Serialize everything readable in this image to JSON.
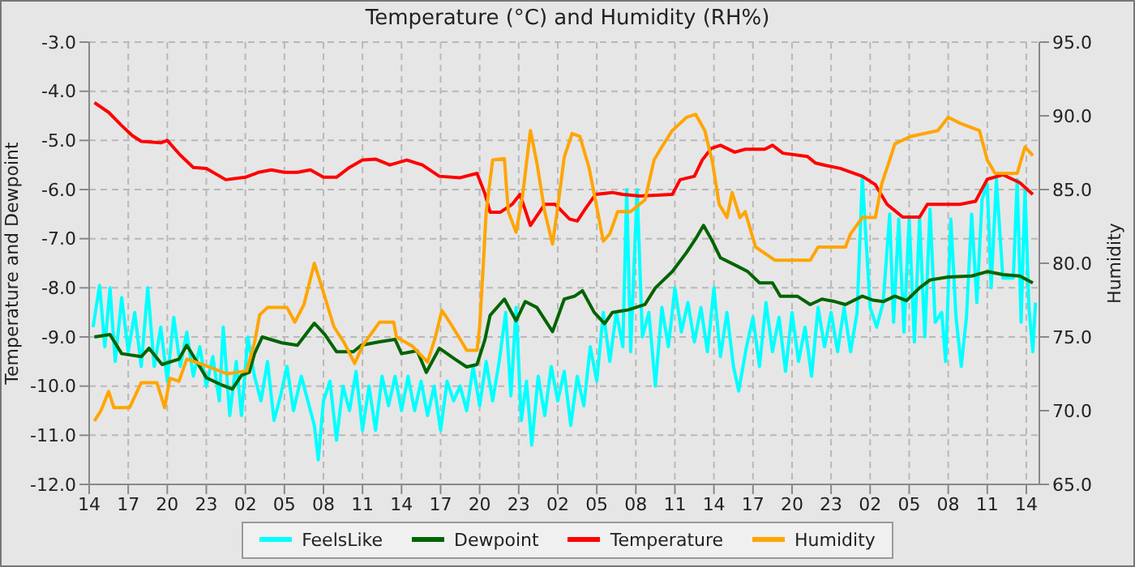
{
  "chart_data": {
    "type": "line",
    "title": "Temperature (°C) and Humidity (RH%)",
    "ylabel": "Temperature and Dewpoint",
    "y2label": "Humidity",
    "xlim": [
      "--01-01T14:00",
      "--01-04T15:00"
    ],
    "xticks": [
      {
        "value": "--01-01T14:00",
        "label": "14"
      },
      {
        "value": "--01-01T17:00",
        "label": "17"
      },
      {
        "value": "--01-01T20:00",
        "label": "20"
      },
      {
        "value": "--01-01T23:00",
        "label": "23"
      },
      {
        "value": "--01-02T02:00",
        "label": "02"
      },
      {
        "value": "--01-02T05:00",
        "label": "05"
      },
      {
        "value": "--01-02T08:00",
        "label": "08"
      },
      {
        "value": "--01-02T11:00",
        "label": "11"
      },
      {
        "value": "--01-02T14:00",
        "label": "14"
      },
      {
        "value": "--01-02T17:00",
        "label": "17"
      },
      {
        "value": "--01-02T20:00",
        "label": "20"
      },
      {
        "value": "--01-02T23:00",
        "label": "23"
      },
      {
        "value": "--01-03T02:00",
        "label": "02"
      },
      {
        "value": "--01-03T05:00",
        "label": "05"
      },
      {
        "value": "--01-03T08:00",
        "label": "08"
      },
      {
        "value": "--01-03T11:00",
        "label": "11"
      },
      {
        "value": "--01-03T14:00",
        "label": "14"
      },
      {
        "value": "--01-03T17:00",
        "label": "17"
      },
      {
        "value": "--01-03T20:00",
        "label": "20"
      },
      {
        "value": "--01-03T23:00",
        "label": "23"
      },
      {
        "value": "--01-04T02:00",
        "label": "02"
      },
      {
        "value": "--01-04T05:00",
        "label": "05"
      },
      {
        "value": "--01-04T08:00",
        "label": "08"
      },
      {
        "value": "--01-04T11:00",
        "label": "11"
      },
      {
        "value": "--01-04T14:00",
        "label": "14"
      }
    ],
    "ylim": [
      -12,
      -3
    ],
    "yticks": [
      {
        "value": -12,
        "label": "-12.0"
      },
      {
        "value": -11,
        "label": "-11.0"
      },
      {
        "value": -10,
        "label": "-10.0"
      },
      {
        "value": -9,
        "label": "-9.0"
      },
      {
        "value": -8,
        "label": "-8.0"
      },
      {
        "value": -7,
        "label": "-7.0"
      },
      {
        "value": -6,
        "label": "-6.0"
      },
      {
        "value": -5,
        "label": "-5.0"
      },
      {
        "value": -4,
        "label": "-4.0"
      },
      {
        "value": -3,
        "label": "-3.0"
      }
    ],
    "y2lim": [
      65,
      95
    ],
    "y2ticks": [
      {
        "value": 65,
        "label": "65.0"
      },
      {
        "value": 70,
        "label": "70.0"
      },
      {
        "value": 75,
        "label": "75.0"
      },
      {
        "value": 80,
        "label": "80.0"
      },
      {
        "value": 85,
        "label": "85.0"
      },
      {
        "value": 90,
        "label": "90.0"
      },
      {
        "value": 95,
        "label": "95.0"
      }
    ],
    "grid": true,
    "legend": "bottom",
    "line_style": "solid",
    "marker": "none",
    "series": [
      {
        "name": "FeelsLike",
        "color": "#00ffff",
        "x": [
          "--01-01T14:18",
          "--01-01T14:48",
          "--01-01T15:12",
          "--01-01T15:36",
          "--01-01T16:00",
          "--01-01T16:30",
          "--01-01T17:00",
          "--01-01T17:30",
          "--01-01T18:00",
          "--01-01T18:30",
          "--01-01T19:00",
          "--01-01T19:30",
          "--01-01T20:00",
          "--01-01T20:30",
          "--01-01T21:00",
          "--01-01T21:30",
          "--01-01T22:00",
          "--01-01T22:30",
          "--01-01T23:00",
          "--01-01T23:30",
          "--01-02T00:00",
          "--01-02T00:18",
          "--01-02T00:48",
          "--01-02T01:18",
          "--01-02T01:42",
          "--01-02T02:12",
          "--01-02T02:42",
          "--01-02T03:12",
          "--01-02T03:42",
          "--01-02T04:12",
          "--01-02T04:42",
          "--01-02T05:12",
          "--01-02T05:42",
          "--01-02T06:18",
          "--01-02T06:48",
          "--01-02T07:18",
          "--01-02T07:36",
          "--01-02T08:00",
          "--01-02T08:30",
          "--01-02T09:00",
          "--01-02T09:30",
          "--01-02T10:00",
          "--01-02T10:30",
          "--01-02T11:00",
          "--01-02T11:30",
          "--01-02T12:00",
          "--01-02T12:30",
          "--01-02T13:00",
          "--01-02T13:30",
          "--01-02T14:00",
          "--01-02T14:30",
          "--01-02T15:00",
          "--01-02T15:30",
          "--01-02T16:00",
          "--01-02T16:30",
          "--01-02T17:00",
          "--01-02T17:30",
          "--01-02T18:00",
          "--01-02T18:30",
          "--01-02T19:00",
          "--01-02T19:30",
          "--01-02T20:00",
          "--01-02T20:30",
          "--01-02T21:00",
          "--01-02T21:30",
          "--01-02T22:00",
          "--01-02T22:24",
          "--01-02T22:48",
          "--01-02T23:12",
          "--01-02T23:36",
          "--01-03T00:00",
          "--01-03T00:30",
          "--01-03T01:00",
          "--01-03T01:30",
          "--01-03T02:00",
          "--01-03T02:30",
          "--01-03T03:00",
          "--01-03T03:30",
          "--01-03T04:00",
          "--01-03T04:30",
          "--01-03T05:00",
          "--01-03T05:30",
          "--01-03T06:00",
          "--01-03T06:30",
          "--01-03T07:00",
          "--01-03T07:18",
          "--01-03T07:36",
          "--01-03T08:06",
          "--01-03T08:30",
          "--01-03T09:00",
          "--01-03T09:30",
          "--01-03T10:00",
          "--01-03T10:30",
          "--01-03T11:00",
          "--01-03T11:30",
          "--01-03T12:00",
          "--01-03T12:30",
          "--01-03T13:00",
          "--01-03T13:30",
          "--01-03T14:00",
          "--01-03T14:30",
          "--01-03T15:00",
          "--01-03T15:30",
          "--01-03T15:54",
          "--01-03T16:30",
          "--01-03T17:00",
          "--01-03T17:30",
          "--01-03T18:00",
          "--01-03T18:30",
          "--01-03T19:00",
          "--01-03T19:30",
          "--01-03T20:00",
          "--01-03T20:30",
          "--01-03T21:00",
          "--01-03T21:30",
          "--01-03T22:00",
          "--01-03T22:30",
          "--01-03T23:00",
          "--01-03T23:30",
          "--01-04T00:00",
          "--01-04T00:30",
          "--01-04T01:00",
          "--01-04T01:24",
          "--01-04T02:00",
          "--01-04T02:30",
          "--01-04T03:00",
          "--01-04T03:30",
          "--01-04T03:48",
          "--01-04T04:12",
          "--01-04T04:36",
          "--01-04T05:00",
          "--01-04T05:24",
          "--01-04T05:48",
          "--01-04T06:12",
          "--01-04T06:36",
          "--01-04T07:00",
          "--01-04T07:30",
          "--01-04T07:48",
          "--01-04T08:12",
          "--01-04T08:36",
          "--01-04T09:00",
          "--01-04T09:24",
          "--01-04T09:48",
          "--01-04T10:12",
          "--01-04T10:36",
          "--01-04T11:00",
          "--01-04T11:18",
          "--01-04T11:42",
          "--01-04T12:12",
          "--01-04T13:00",
          "--01-04T13:18",
          "--01-04T13:36",
          "--01-04T13:54",
          "--01-04T14:12",
          "--01-04T14:30",
          "--01-04T14:42"
        ],
        "values": [
          -8.8,
          -7.95,
          -9.2,
          -8.0,
          -9.5,
          -8.2,
          -9.3,
          -8.5,
          -9.6,
          -8.0,
          -9.6,
          -8.8,
          -9.9,
          -8.6,
          -9.6,
          -8.9,
          -9.8,
          -9.2,
          -10.0,
          -9.4,
          -10.3,
          -8.8,
          -10.6,
          -9.5,
          -10.6,
          -9.0,
          -9.8,
          -10.3,
          -9.5,
          -10.7,
          -10.2,
          -9.6,
          -10.5,
          -9.8,
          -10.3,
          -10.8,
          -11.5,
          -10.3,
          -9.9,
          -11.1,
          -10.0,
          -10.5,
          -9.7,
          -10.9,
          -10.0,
          -10.9,
          -9.8,
          -10.4,
          -9.8,
          -10.5,
          -9.8,
          -10.5,
          -9.9,
          -10.6,
          -10.0,
          -10.9,
          -9.9,
          -10.3,
          -10.0,
          -10.5,
          -9.6,
          -10.4,
          -9.5,
          -10.3,
          -9.5,
          -8.5,
          -10.2,
          -8.4,
          -10.7,
          -9.9,
          -11.2,
          -9.8,
          -10.6,
          -9.6,
          -10.3,
          -9.7,
          -10.8,
          -9.8,
          -10.4,
          -9.2,
          -9.9,
          -8.5,
          -9.5,
          -8.5,
          -9.2,
          -6.0,
          -9.3,
          -6.0,
          -9.0,
          -8.5,
          -10.0,
          -8.4,
          -9.2,
          -8.0,
          -8.9,
          -8.3,
          -9.1,
          -8.4,
          -9.3,
          -8.0,
          -9.4,
          -8.5,
          -9.6,
          -10.1,
          -9.2,
          -8.6,
          -9.6,
          -8.3,
          -9.3,
          -8.6,
          -9.7,
          -8.5,
          -9.5,
          -8.8,
          -9.8,
          -8.4,
          -9.2,
          -8.5,
          -9.3,
          -8.4,
          -9.3,
          -8.5,
          -5.75,
          -8.4,
          -8.8,
          -8.3,
          -6.5,
          -8.7,
          -6.6,
          -8.9,
          -6.6,
          -9.1,
          -6.6,
          -9.0,
          -6.4,
          -8.7,
          -8.5,
          -9.5,
          -6.6,
          -8.6,
          -9.6,
          -8.6,
          -6.5,
          -8.3,
          -6.2,
          -5.9,
          -8.0,
          -5.8,
          -7.8,
          -7.8,
          -5.8,
          -8.7,
          -6.0,
          -8.4,
          -9.3,
          -8.3
        ]
      },
      {
        "name": "Dewpoint",
        "color": "#006400",
        "x": [
          "--01-01T14:24",
          "--01-01T15:36",
          "--01-01T16:30",
          "--01-01T18:00",
          "--01-01T18:36",
          "--01-01T19:36",
          "--01-01T20:54",
          "--01-01T21:30",
          "--01-01T22:24",
          "--01-01T23:00",
          "--01-02T00:12",
          "--01-02T01:00",
          "--01-02T01:42",
          "--01-02T02:18",
          "--01-02T02:42",
          "--01-02T03:18",
          "--01-02T04:48",
          "--01-02T06:00",
          "--01-02T07:18",
          "--01-02T08:06",
          "--01-02T09:00",
          "--01-02T10:18",
          "--01-02T10:54",
          "--01-02T12:18",
          "--01-02T13:30",
          "--01-02T14:00",
          "--01-02T15:12",
          "--01-02T15:54",
          "--01-02T16:54",
          "--01-02T18:06",
          "--01-02T19:00",
          "--01-02T19:48",
          "--01-02T20:24",
          "--01-02T20:48",
          "--01-02T21:54",
          "--01-02T22:48",
          "--01-02T23:30",
          "--01-03T00:24",
          "--01-03T01:36",
          "--01-03T02:30",
          "--01-03T03:18",
          "--01-03T03:54",
          "--01-03T04:48",
          "--01-03T05:36",
          "--01-03T06:12",
          "--01-03T07:24",
          "--01-03T08:42",
          "--01-03T09:30",
          "--01-03T10:48",
          "--01-03T11:54",
          "--01-03T12:36",
          "--01-03T13:12",
          "--01-03T13:54",
          "--01-03T14:30",
          "--01-03T15:48",
          "--01-03T16:36",
          "--01-03T17:30",
          "--01-03T18:30",
          "--01-03T19:06",
          "--01-03T20:24",
          "--01-03T21:24",
          "--01-03T22:18",
          "--01-03T23:18",
          "--01-04T00:06",
          "--01-04T01:24",
          "--01-04T02:12",
          "--01-04T03:00",
          "--01-04T03:54",
          "--01-04T04:48",
          "--01-04T05:48",
          "--01-04T06:36",
          "--01-04T08:00",
          "--01-04T09:48",
          "--01-04T11:00",
          "--01-04T12:12",
          "--01-04T13:30",
          "--01-04T14:30"
        ],
        "values": [
          -9.0,
          -8.95,
          -9.34,
          -9.4,
          -9.23,
          -9.56,
          -9.45,
          -9.17,
          -9.56,
          -9.83,
          -9.98,
          -10.06,
          -9.78,
          -9.72,
          -9.34,
          -9.0,
          -9.12,
          -9.17,
          -8.72,
          -8.95,
          -9.3,
          -9.3,
          -9.17,
          -9.1,
          -9.05,
          -9.34,
          -9.28,
          -9.72,
          -9.23,
          -9.45,
          -9.61,
          -9.56,
          -9.06,
          -8.56,
          -8.23,
          -8.67,
          -8.28,
          -8.4,
          -8.89,
          -8.23,
          -8.17,
          -8.06,
          -8.5,
          -8.73,
          -8.5,
          -8.45,
          -8.34,
          -8.0,
          -7.67,
          -7.28,
          -7.0,
          -6.73,
          -7.06,
          -7.39,
          -7.56,
          -7.67,
          -7.9,
          -7.9,
          -8.17,
          -8.17,
          -8.34,
          -8.23,
          -8.28,
          -8.34,
          -8.17,
          -8.25,
          -8.28,
          -8.17,
          -8.26,
          -8.0,
          -7.84,
          -7.78,
          -7.76,
          -7.67,
          -7.73,
          -7.76,
          -7.9
        ]
      },
      {
        "name": "Temperature",
        "color": "#ff0000",
        "x": [
          "--01-01T14:24",
          "--01-01T15:30",
          "--01-01T16:30",
          "--01-01T17:18",
          "--01-01T18:00",
          "--01-01T19:30",
          "--01-01T20:00",
          "--01-01T21:00",
          "--01-01T22:00",
          "--01-01T23:00",
          "--01-02T00:30",
          "--01-02T02:00",
          "--01-02T03:00",
          "--01-02T04:00",
          "--01-02T05:00",
          "--01-02T06:00",
          "--01-02T07:00",
          "--01-02T08:00",
          "--01-02T09:00",
          "--01-02T10:00",
          "--01-02T11:00",
          "--01-02T12:00",
          "--01-02T13:06",
          "--01-02T14:24",
          "--01-02T15:36",
          "--01-02T16:54",
          "--01-02T18:30",
          "--01-02T19:48",
          "--01-02T20:24",
          "--01-02T20:48",
          "--01-02T21:36",
          "--01-02T22:30",
          "--01-02T23:06",
          "--01-02T23:54",
          "--01-03T01:00",
          "--01-03T01:48",
          "--01-03T02:54",
          "--01-03T03:30",
          "--01-03T04:06",
          "--01-03T04:54",
          "--01-03T06:12",
          "--01-03T07:00",
          "--01-03T08:18",
          "--01-03T10:48",
          "--01-03T11:24",
          "--01-03T12:30",
          "--01-03T13:06",
          "--01-03T13:48",
          "--01-03T14:30",
          "--01-03T15:36",
          "--01-03T16:24",
          "--01-03T17:54",
          "--01-03T18:30",
          "--01-03T19:18",
          "--01-03T21:12",
          "--01-03T21:48",
          "--01-03T22:36",
          "--01-03T23:42",
          "--01-04T01:24",
          "--01-04T02:24",
          "--01-04T03:18",
          "--01-04T04:30",
          "--01-04T05:48",
          "--01-04T06:24",
          "--01-04T07:24",
          "--01-04T08:54",
          "--01-04T10:06",
          "--01-04T11:00",
          "--01-04T12:12",
          "--01-04T13:30",
          "--01-04T14:30"
        ],
        "values": [
          -4.23,
          -4.43,
          -4.7,
          -4.9,
          -5.02,
          -5.05,
          -5.0,
          -5.3,
          -5.55,
          -5.57,
          -5.8,
          -5.75,
          -5.65,
          -5.6,
          -5.65,
          -5.65,
          -5.6,
          -5.75,
          -5.75,
          -5.55,
          -5.4,
          -5.38,
          -5.5,
          -5.4,
          -5.5,
          -5.73,
          -5.76,
          -5.67,
          -6.08,
          -6.46,
          -6.46,
          -6.3,
          -6.1,
          -6.73,
          -6.3,
          -6.3,
          -6.6,
          -6.64,
          -6.4,
          -6.1,
          -6.06,
          -6.1,
          -6.13,
          -6.1,
          -5.8,
          -5.73,
          -5.4,
          -5.16,
          -5.1,
          -5.24,
          -5.18,
          -5.18,
          -5.1,
          -5.26,
          -5.33,
          -5.46,
          -5.51,
          -5.57,
          -5.73,
          -5.9,
          -6.3,
          -6.56,
          -6.56,
          -6.3,
          -6.3,
          -6.3,
          -6.24,
          -5.79,
          -5.7,
          -5.86,
          -6.1
        ]
      },
      {
        "name": "Humidity",
        "color": "#ffa500",
        "axis": "y2",
        "x": [
          "--01-01T14:24",
          "--01-01T14:54",
          "--01-01T15:30",
          "--01-01T15:54",
          "--01-01T17:06",
          "--01-01T18:00",
          "--01-01T19:12",
          "--01-01T19:48",
          "--01-01T20:12",
          "--01-01T20:54",
          "--01-01T21:30",
          "--01-01T22:30",
          "--01-02T00:36",
          "--01-02T02:06",
          "--01-02T02:42",
          "--01-02T03:06",
          "--01-02T03:42",
          "--01-02T05:12",
          "--01-02T05:48",
          "--01-02T06:30",
          "--01-02T07:18",
          "--01-02T07:54",
          "--01-02T08:48",
          "--01-02T09:36",
          "--01-02T10:24",
          "--01-02T11:00",
          "--01-02T12:18",
          "--01-02T13:24",
          "--01-02T13:36",
          "--01-02T14:48",
          "--01-02T16:00",
          "--01-02T16:36",
          "--01-02T17:06",
          "--01-02T17:42",
          "--01-02T18:24",
          "--01-02T19:00",
          "--01-02T19:48",
          "--01-02T20:00",
          "--01-02T20:18",
          "--01-02T20:30",
          "--01-02T21:00",
          "--01-02T21:54",
          "--01-02T22:12",
          "--01-02T22:48",
          "--01-02T23:18",
          "--01-02T23:54",
          "--01-03T00:24",
          "--01-03T01:00",
          "--01-03T01:36",
          "--01-03T02:00",
          "--01-03T02:30",
          "--01-03T03:06",
          "--01-03T03:42",
          "--01-03T04:24",
          "--01-03T05:00",
          "--01-03T05:30",
          "--01-03T06:00",
          "--01-03T06:36",
          "--01-03T07:36",
          "--01-03T08:42",
          "--01-03T09:24",
          "--01-03T10:00",
          "--01-03T10:48",
          "--01-03T11:54",
          "--01-03T12:36",
          "--01-03T13:18",
          "--01-03T13:54",
          "--01-03T14:24",
          "--01-03T15:00",
          "--01-03T15:24",
          "--01-03T16:00",
          "--01-03T16:24",
          "--01-03T17:12",
          "--01-03T18:42",
          "--01-03T21:24",
          "--01-03T22:00",
          "--01-04T00:06",
          "--01-04T00:30",
          "--01-04T01:24",
          "--01-04T02:24",
          "--01-04T02:54",
          "--01-04T03:30",
          "--01-04T03:54",
          "--01-04T05:06",
          "--01-04T07:12",
          "--01-04T08:00",
          "--01-04T08:54",
          "--01-04T10:24",
          "--01-04T11:00",
          "--01-04T11:36",
          "--01-04T13:18",
          "--01-04T13:54",
          "--01-04T14:30"
        ],
        "values": [
          69.3,
          70.0,
          71.3,
          70.2,
          70.2,
          71.9,
          71.9,
          70.2,
          72.2,
          72.0,
          73.5,
          73.2,
          72.5,
          72.7,
          74.6,
          76.5,
          77.0,
          77.0,
          76.0,
          77.2,
          80.0,
          78.3,
          75.7,
          74.6,
          73.2,
          74.4,
          76.0,
          76.0,
          75.0,
          74.4,
          73.3,
          75.0,
          76.8,
          76.0,
          75.0,
          74.1,
          74.1,
          75.7,
          80.2,
          83.5,
          87.0,
          87.1,
          83.5,
          82.1,
          84.6,
          89.0,
          86.8,
          83.5,
          81.3,
          83.8,
          87.2,
          88.8,
          88.6,
          86.5,
          83.8,
          81.5,
          82.0,
          83.5,
          83.5,
          84.3,
          87.0,
          87.9,
          89.0,
          89.9,
          90.1,
          89.0,
          86.8,
          84.0,
          83.1,
          84.8,
          83.1,
          83.5,
          81.1,
          80.2,
          80.2,
          81.1,
          81.1,
          82.0,
          83.1,
          83.1,
          85.4,
          87.0,
          88.1,
          88.6,
          89.0,
          89.9,
          89.5,
          89.0,
          87.0,
          86.1,
          86.1,
          87.9,
          87.3
        ]
      }
    ]
  }
}
